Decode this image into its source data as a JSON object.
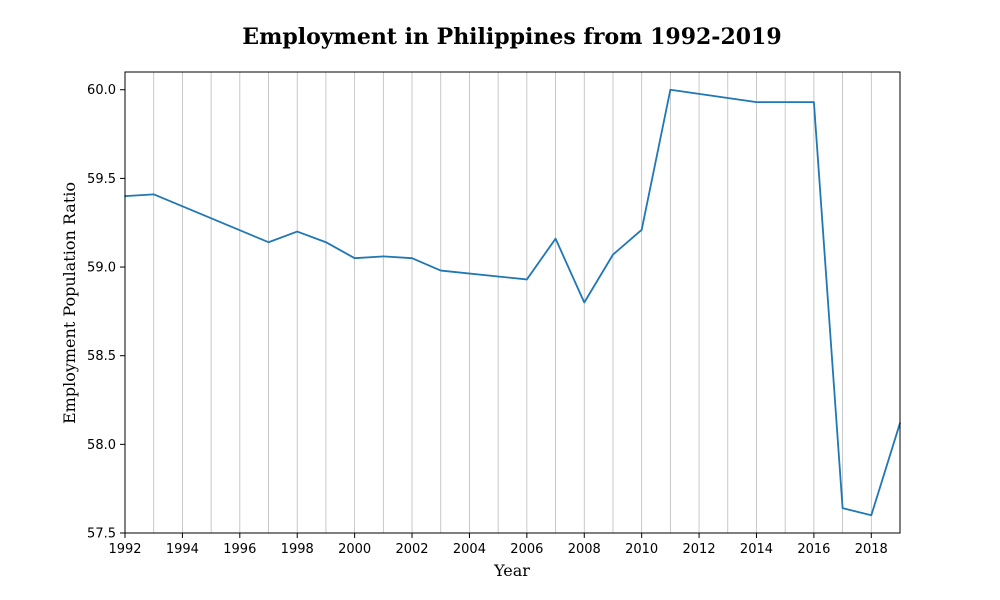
{
  "chart_data": {
    "type": "line",
    "title": "Employment in Philippines from 1992-2019",
    "xlabel": "Year",
    "ylabel": "Employment Population Ratio",
    "xlim": [
      1992,
      2019
    ],
    "ylim": [
      57.5,
      60.1
    ],
    "xticks": [
      "1992",
      "1994",
      "1996",
      "1998",
      "2000",
      "2002",
      "2004",
      "2006",
      "2008",
      "2010",
      "2012",
      "2014",
      "2016",
      "2018"
    ],
    "yticks": [
      "57.5",
      "58.0",
      "58.5",
      "59.0",
      "59.5",
      "60.0"
    ],
    "grid": {
      "x": true,
      "y": false
    },
    "colors": {
      "line": "#1f77b4"
    },
    "x": [
      1992,
      1993,
      1997,
      1998,
      1999,
      2000,
      2001,
      2002,
      2003,
      2006,
      2007,
      2008,
      2009,
      2010,
      2011,
      2014,
      2016,
      2017,
      2018,
      2019
    ],
    "y": [
      59.4,
      59.41,
      59.14,
      59.2,
      59.14,
      59.05,
      59.06,
      59.05,
      58.98,
      58.93,
      59.16,
      58.8,
      59.07,
      59.21,
      60.0,
      59.93,
      59.93,
      57.64,
      57.6,
      58.12
    ]
  }
}
